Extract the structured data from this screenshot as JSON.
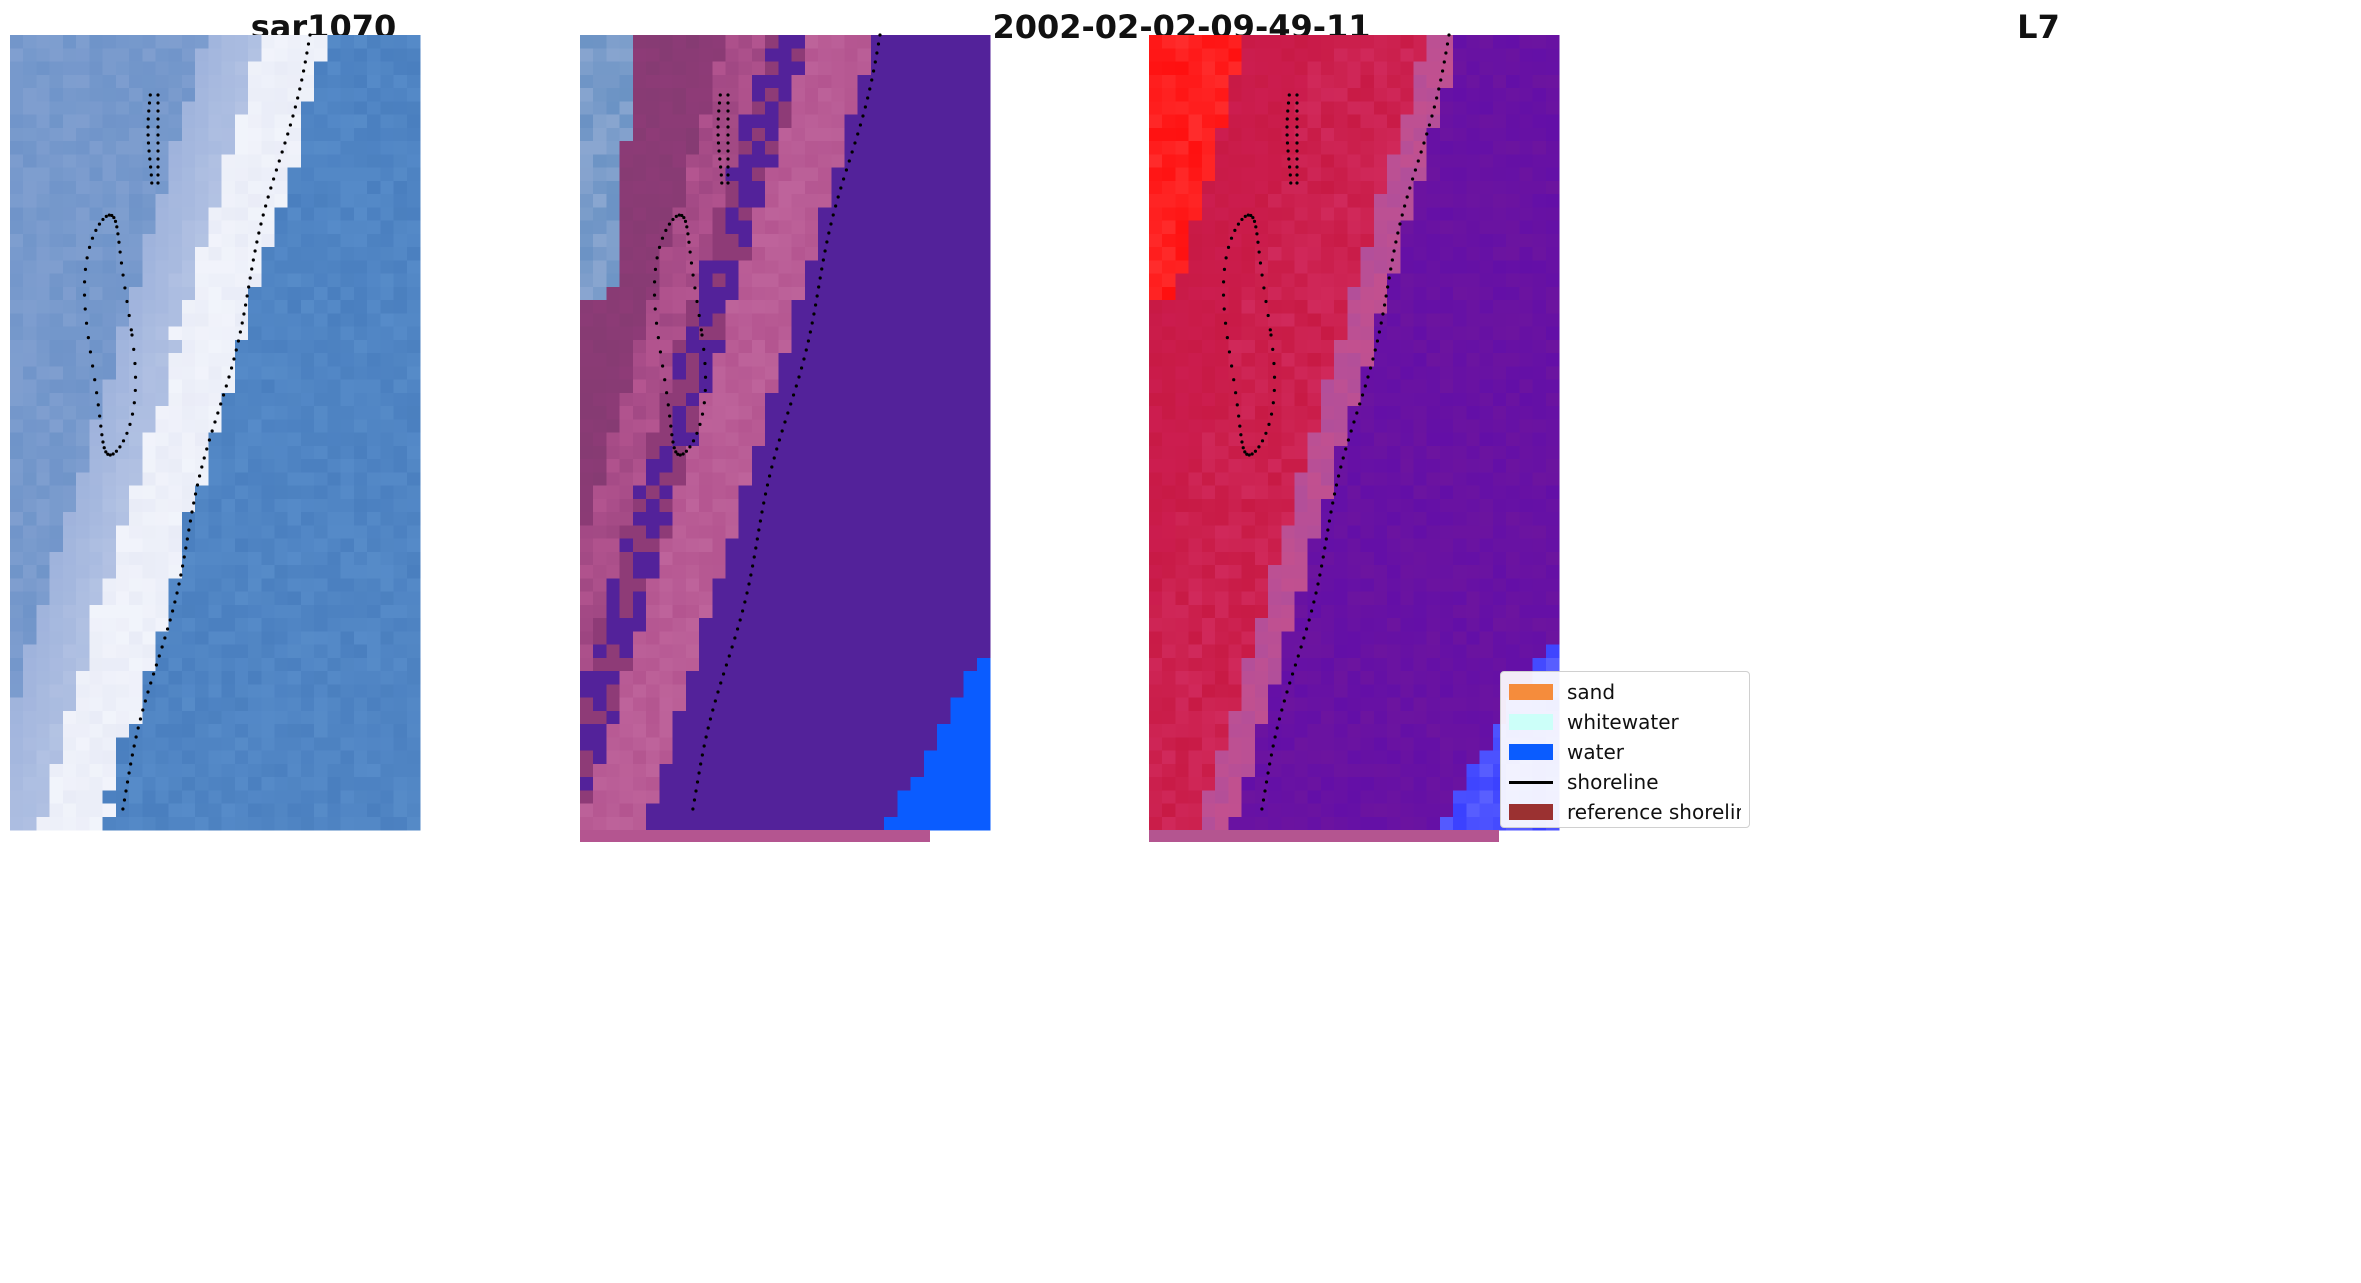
{
  "panels": [
    {
      "title": "sar1070",
      "kind": "rgb"
    },
    {
      "title": "2002-02-02-09-49-11",
      "kind": "classified"
    },
    {
      "title": "L7",
      "kind": "index"
    }
  ],
  "legend": {
    "items": [
      {
        "label": "sand",
        "color": "#f58c3c",
        "type": "patch"
      },
      {
        "label": "whitewater",
        "color": "#ccfff9",
        "type": "patch"
      },
      {
        "label": "water",
        "color": "#0a5cff",
        "type": "patch"
      },
      {
        "label": "shoreline",
        "color": "#000000",
        "type": "line"
      },
      {
        "label": "reference shoreline",
        "color": "#9b3131",
        "type": "patch"
      }
    ]
  },
  "colors": {
    "sea_blue": "#4a7fbf",
    "surf_white": "#e9ecf7",
    "class_purple": "#53229a",
    "class_pink": "#b45590",
    "class_magenta": "#8e3b77",
    "class_water": "#0a5cff",
    "index_red": "#c81a45",
    "index_bright_red": "#ff1010",
    "index_purple": "#6c149f",
    "index_pink": "#c2508f"
  }
}
